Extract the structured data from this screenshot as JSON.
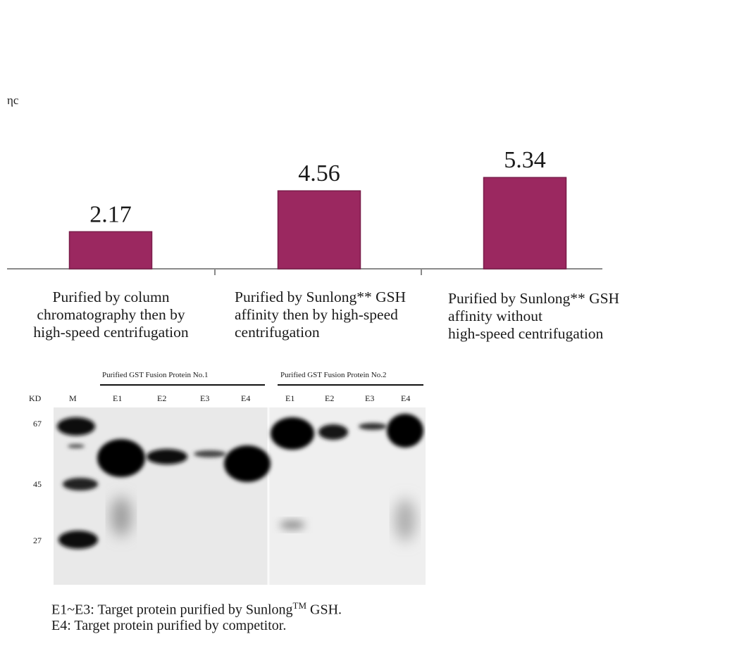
{
  "cut_label": "ηc",
  "chart_data": {
    "type": "bar",
    "categories": [
      "Purified by column\nchromatography then by\nhigh-speed centrifugation",
      "Purified by Sunlong** GSH\naffinity then by high-speed\ncentrifugation",
      "Purified by Sunlong** GSH\naffinity without\nhigh-speed centrifugation"
    ],
    "values": [
      2.17,
      4.56,
      5.34
    ],
    "value_labels": [
      "2.17",
      "4.56",
      "5.34"
    ],
    "bar_color": "#9b2860",
    "ylim": [
      0,
      5.8
    ],
    "grid": false
  },
  "gel": {
    "group1_title": "Purified GST Fusion Protein No.1",
    "group2_title": "Purified GST Fusion Protein No.2",
    "kd_header": "KD",
    "marker_lane": "M",
    "lanes_group1": [
      "E1",
      "E2",
      "E3",
      "E4"
    ],
    "lanes_group2": [
      "E1",
      "E2",
      "E3",
      "E4"
    ],
    "kd_markers": [
      "67",
      "45",
      "27"
    ]
  },
  "caption": {
    "line1_prefix": "E1~E3: Target protein purified by Sunlong",
    "line1_sup": "TM",
    "line1_suffix": " GSH.",
    "line2": "E4: Target protein purified by competitor."
  }
}
